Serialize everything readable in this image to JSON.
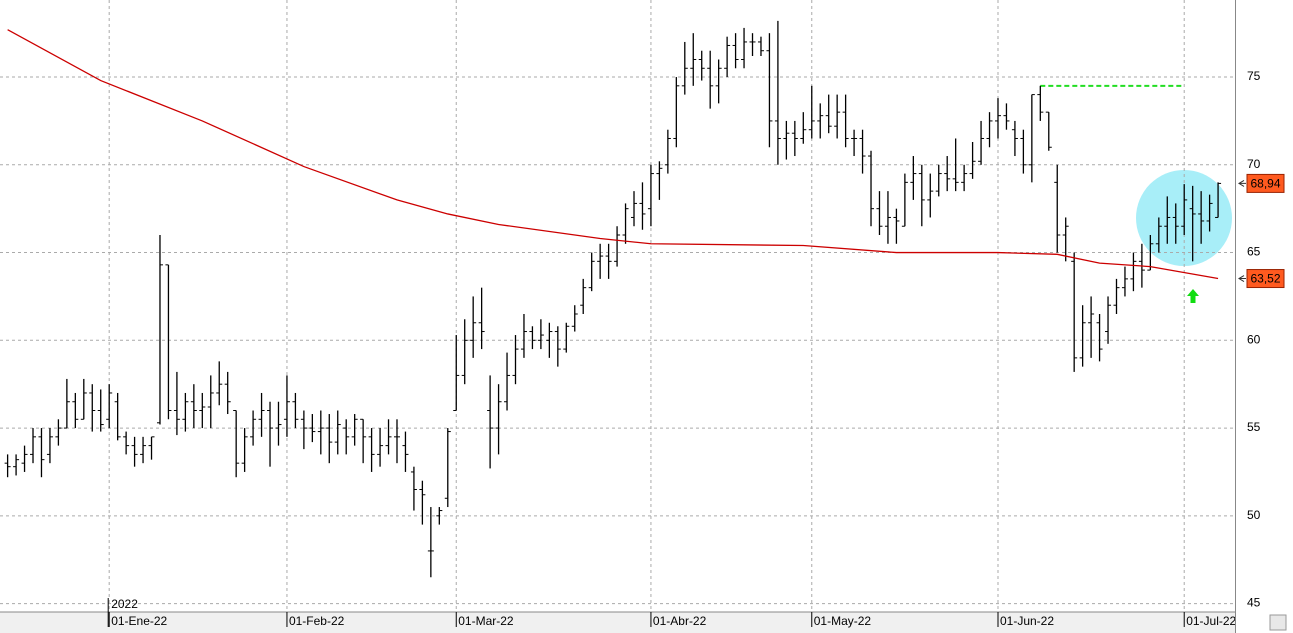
{
  "chart_data": {
    "type": "ohlc",
    "xlim": [
      -0.9,
      145
    ],
    "ylim": [
      44.52,
      79.39
    ],
    "yticks": [
      45,
      50,
      55,
      60,
      65,
      70,
      75
    ],
    "xticks": [
      {
        "value": 12,
        "label": "01-Ene-22"
      },
      {
        "value": 33,
        "label": "01-Feb-22"
      },
      {
        "value": 53,
        "label": "01-Mar-22"
      },
      {
        "value": 76,
        "label": "01-Abr-22"
      },
      {
        "value": 95,
        "label": "01-May-22"
      },
      {
        "value": 117,
        "label": "01-Jun-22"
      },
      {
        "value": 139,
        "label": "01-Jul-22"
      }
    ],
    "year_label": "2022",
    "grid": true,
    "series": [
      {
        "type": "ohlc",
        "color": "#000000",
        "label_color": "#ff5a1f",
        "x": [
          0,
          1,
          2,
          3,
          4,
          5,
          6,
          7,
          8,
          9,
          10,
          11,
          12,
          13,
          14,
          15,
          16,
          17,
          18,
          19,
          20,
          21,
          22,
          23,
          24,
          25,
          26,
          27,
          28,
          29,
          30,
          31,
          32,
          33,
          34,
          35,
          36,
          37,
          38,
          39,
          40,
          41,
          42,
          43,
          44,
          45,
          46,
          47,
          48,
          49,
          50,
          51,
          52,
          53,
          54,
          55,
          56,
          57,
          58,
          59,
          60,
          61,
          62,
          63,
          64,
          65,
          66,
          67,
          68,
          69,
          70,
          71,
          72,
          73,
          74,
          75,
          76,
          77,
          78,
          79,
          80,
          81,
          82,
          83,
          84,
          85,
          86,
          87,
          88,
          89,
          90,
          91,
          92,
          93,
          94,
          95,
          96,
          97,
          98,
          99,
          100,
          101,
          102,
          103,
          104,
          105,
          106,
          107,
          108,
          109,
          110,
          111,
          112,
          113,
          114,
          115,
          116,
          117,
          118,
          119,
          120,
          121,
          122,
          123,
          124,
          125,
          126,
          127,
          128,
          129,
          130,
          131,
          132,
          133,
          134,
          135,
          136,
          137,
          138,
          139,
          140,
          141,
          142,
          143
        ],
        "open": [
          53,
          52.8,
          53,
          53.5,
          54.5,
          53.5,
          54.5,
          55,
          56.5,
          55.5,
          57,
          56,
          55.5,
          56.5,
          54.5,
          54,
          53.5,
          54,
          55.3,
          64.3,
          56,
          55.5,
          56.5,
          56,
          56.2,
          57,
          57.5,
          56,
          53,
          54.5,
          55.5,
          56,
          55,
          55.5,
          56.5,
          55.5,
          55,
          54.8,
          55,
          54.2,
          55,
          54.5,
          55.5,
          54.5,
          53.5,
          54,
          54.5,
          54,
          52.5,
          51.5,
          48,
          50,
          51,
          56,
          58,
          60,
          61,
          56,
          55,
          56.5,
          58,
          59.5,
          60.5,
          60,
          60,
          60.5,
          59.5,
          60.8,
          62,
          63,
          64.5,
          64.8,
          64.5,
          66,
          67,
          67.8,
          67.5,
          69.5,
          70,
          71.5,
          74.5,
          75.5,
          76,
          75.5,
          74.5,
          75.5,
          76.8,
          76,
          77,
          77,
          76.5,
          72.5,
          71.5,
          71.8,
          71.5,
          72,
          72.5,
          72.8,
          72.2,
          73,
          71.5,
          71.5,
          70.5,
          67.5,
          66.5,
          67,
          66.5,
          69,
          69.5,
          68,
          68.5,
          69.5,
          69.2,
          69,
          69.5,
          70.2,
          71.5,
          72.5,
          72.8,
          72,
          71.5,
          70,
          74,
          73,
          69,
          66,
          64.5,
          59,
          61,
          61,
          60.5,
          62,
          63,
          63.5,
          64.5,
          64,
          65.5,
          66.5,
          67,
          66.5,
          67.5,
          67.2,
          66.8,
          67
        ],
        "high": [
          53.5,
          53.5,
          54,
          55,
          55,
          55,
          55.5,
          57.8,
          57,
          57.8,
          57.5,
          57.2,
          57.5,
          57,
          54.8,
          54.5,
          54.5,
          54.5,
          66,
          64.3,
          58.2,
          57,
          57.5,
          57,
          58,
          58.8,
          58.2,
          56,
          55,
          56,
          57,
          56.5,
          56.5,
          58,
          57,
          56,
          55.8,
          56,
          55.8,
          56,
          55.5,
          55.8,
          55.5,
          55,
          55,
          55.5,
          55.5,
          54.8,
          52.8,
          52,
          50.5,
          50.5,
          55,
          60.3,
          61.2,
          62.5,
          63,
          58,
          57.5,
          59.3,
          60.3,
          61.5,
          60.8,
          61.2,
          61,
          60.8,
          61,
          62,
          63.5,
          65,
          65.5,
          65.5,
          66.5,
          67.8,
          68.5,
          69,
          70,
          70.2,
          72,
          75,
          77,
          77.5,
          76.5,
          76.5,
          76,
          77.3,
          77.5,
          77.8,
          77.5,
          77.3,
          77.5,
          78.2,
          72.5,
          72.5,
          73,
          74.5,
          73.5,
          74,
          74,
          74,
          72,
          72,
          70.8,
          68.5,
          68.5,
          67.5,
          69.5,
          70.5,
          70,
          69.5,
          70,
          70.5,
          71.5,
          70,
          71.3,
          72.5,
          73,
          73.8,
          73.5,
          72.5,
          72,
          74,
          74.5,
          73,
          70,
          67,
          65,
          62,
          62.5,
          61.5,
          62.5,
          63.5,
          64.2,
          65,
          65.5,
          66,
          67,
          68.2,
          67.8,
          68.9,
          68.8,
          68.5,
          68.3,
          69
        ],
        "low": [
          52.2,
          52.3,
          52.5,
          53,
          52.2,
          53,
          54,
          55,
          55,
          55.5,
          54.8,
          54.8,
          55,
          54.3,
          53.5,
          52.8,
          53,
          53.2,
          55.2,
          55.5,
          54.6,
          54.8,
          55,
          55,
          55,
          56.3,
          55.8,
          52.2,
          52.5,
          54,
          54.5,
          52.8,
          54,
          54.5,
          55,
          53.8,
          54.2,
          53.5,
          53,
          53.5,
          53.5,
          54,
          53,
          52.5,
          52.8,
          53.5,
          53,
          52.5,
          50.3,
          49.5,
          46.5,
          49.5,
          50.5,
          56,
          57.5,
          59,
          59.5,
          52.7,
          53.5,
          56,
          57.5,
          59,
          59.5,
          59.5,
          59,
          58.5,
          59.3,
          60.5,
          61.5,
          62.8,
          63.5,
          63.5,
          64.2,
          65.5,
          66.5,
          66.3,
          66.5,
          68,
          69.5,
          71,
          74,
          74.5,
          74.8,
          73.2,
          73.5,
          75,
          75.5,
          75.5,
          76.2,
          76.2,
          71,
          70,
          70.3,
          70.5,
          71.2,
          71.5,
          71.5,
          71.8,
          71.5,
          71,
          70.5,
          69.5,
          66.5,
          66,
          65.5,
          65.5,
          66.5,
          68,
          66.5,
          67,
          68.2,
          68.5,
          68.5,
          68.5,
          69.2,
          70,
          71,
          71.5,
          72,
          70.5,
          69.5,
          69,
          72.5,
          70.8,
          65,
          64.5,
          58.2,
          58.5,
          59,
          58.8,
          59.8,
          61.5,
          62.5,
          62.8,
          63,
          64,
          65,
          65.5,
          65.5,
          66,
          64.5,
          65.5,
          66.2,
          67
        ],
        "close": [
          52.8,
          53.2,
          53.5,
          54.5,
          53.2,
          54.5,
          55,
          56.5,
          55.5,
          57,
          56,
          55.2,
          57,
          54.5,
          54,
          53.5,
          54,
          54.5,
          64.3,
          56,
          55.5,
          56.5,
          56,
          56.2,
          57,
          57.5,
          56.5,
          53,
          54.5,
          55.5,
          56,
          55,
          55.2,
          56.5,
          55.5,
          55,
          54.8,
          55,
          54.2,
          55.2,
          54.5,
          55.5,
          54.5,
          53.5,
          54,
          54.5,
          54.5,
          53.5,
          51.5,
          51.2,
          48,
          50.3,
          54.8,
          58,
          60,
          61,
          60.5,
          55,
          56.5,
          58,
          59.5,
          60.5,
          60,
          60.3,
          60.5,
          59.5,
          60.8,
          61.5,
          63,
          64.5,
          64.8,
          64.5,
          66,
          67.5,
          67.8,
          67.2,
          69.5,
          69.8,
          71.5,
          74.5,
          75.5,
          76,
          75.5,
          74.5,
          75.5,
          76.8,
          76,
          77,
          77,
          76.5,
          72.5,
          71.5,
          71.8,
          71.5,
          72,
          72.5,
          72.8,
          72.2,
          73,
          71.5,
          71.5,
          70.5,
          67.5,
          66.5,
          67,
          66.8,
          69,
          69.5,
          68,
          68.5,
          69.5,
          69.2,
          69,
          69.5,
          70.2,
          71.5,
          72.5,
          72.8,
          72.5,
          71.5,
          70,
          74,
          73,
          71,
          66,
          66.5,
          59,
          61,
          61.5,
          59.5,
          62,
          63,
          63.5,
          64.5,
          64,
          65.5,
          66.5,
          67,
          66.5,
          68,
          67.2,
          66.8,
          67.8,
          68.94
        ],
        "last_label": "68,94"
      },
      {
        "type": "line",
        "color": "#cc0000",
        "label_color": "#ff5a1f",
        "x": [
          0,
          11,
          23,
          35,
          46,
          52,
          58,
          70,
          76,
          94,
          105,
          117,
          124,
          129,
          135,
          143
        ],
        "values": [
          77.7,
          74.8,
          72.5,
          69.9,
          68,
          67.2,
          66.6,
          65.8,
          65.5,
          65.4,
          65.0,
          65.0,
          64.9,
          64.4,
          64.2,
          63.52
        ],
        "last_label": "63,52"
      }
    ],
    "reference_lines": [
      {
        "value": 74.5,
        "x": [
          122,
          139
        ],
        "color": "#22dd22"
      }
    ]
  }
}
